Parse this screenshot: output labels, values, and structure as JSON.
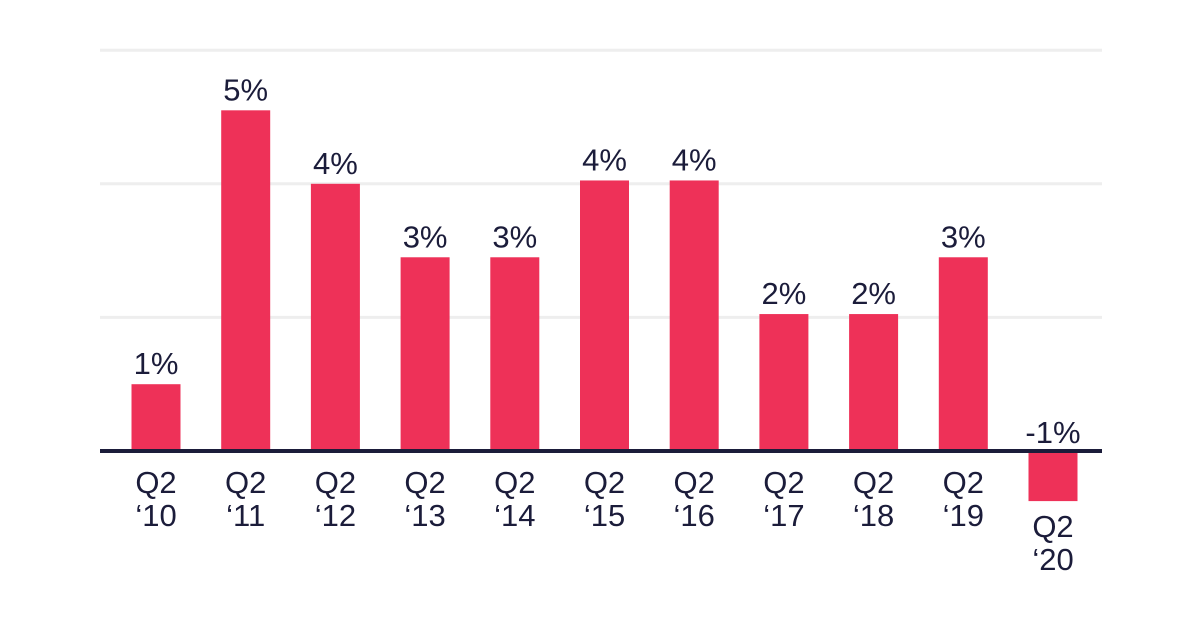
{
  "chart_data": {
    "type": "bar",
    "categories": [
      [
        "Q2",
        "‘10"
      ],
      [
        "Q2",
        "‘11"
      ],
      [
        "Q2",
        "‘12"
      ],
      [
        "Q2",
        "‘13"
      ],
      [
        "Q2",
        "‘14"
      ],
      [
        "Q2",
        "‘15"
      ],
      [
        "Q2",
        "‘16"
      ],
      [
        "Q2",
        "‘17"
      ],
      [
        "Q2",
        "‘18"
      ],
      [
        "Q2",
        "‘19"
      ],
      [
        "Q2",
        "‘20"
      ]
    ],
    "values": [
      1.0,
      5.1,
      4.0,
      2.9,
      2.9,
      4.05,
      4.05,
      2.05,
      2.05,
      2.9,
      -0.75
    ],
    "data_labels": [
      "1%",
      "5%",
      "4%",
      "3%",
      "3%",
      "4%",
      "4%",
      "2%",
      "2%",
      "3%",
      "-1%"
    ],
    "title": "",
    "xlabel": "",
    "ylabel": "",
    "ylim": [
      -1,
      6
    ],
    "grid": true,
    "colors": {
      "bar": "#ee3158",
      "axis": "#1b1c3a",
      "grid": "#eeeeee",
      "text": "#1b1c3a"
    }
  }
}
